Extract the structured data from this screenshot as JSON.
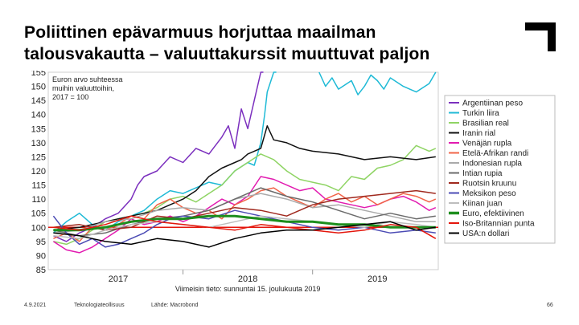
{
  "title_lines": [
    "Poliittinen epävarmuus horjuttaa maailman",
    "talousvakautta – valuuttakurssit muuttuvat paljon"
  ],
  "footer": {
    "date": "4.9.2021",
    "org": "Teknologiateollisuus",
    "source": "Lähde: Macrobond",
    "page": "66"
  },
  "chart_data": {
    "type": "line",
    "annotation": [
      "Euron arvo suhteessa",
      "muihin valuuttoihin,",
      "2017 = 100"
    ],
    "note": "Viimeisin tieto: sunnuntai 15. joulukuuta 2019",
    "ylim": [
      85,
      155
    ],
    "yticks": [
      85,
      90,
      95,
      100,
      105,
      110,
      115,
      120,
      125,
      130,
      135,
      140,
      145,
      150,
      155
    ],
    "xlim": [
      2016.96,
      2019.97
    ],
    "xticks": [
      {
        "label": "2017",
        "x": 2017.5
      },
      {
        "label": "2018",
        "x": 2018.5
      },
      {
        "label": "2019",
        "x": 2019.5
      }
    ],
    "xbounds": [
      2018.0,
      2019.0
    ],
    "reference_line": {
      "y": 100,
      "color": "#e4160c"
    },
    "legend_position": "right",
    "series": [
      {
        "name": "Argentiinan peso",
        "color": "#7b2fbe",
        "width": 1.5,
        "x": [
          2017.0,
          2017.1,
          2017.2,
          2017.3,
          2017.4,
          2017.5,
          2017.6,
          2017.65,
          2017.7,
          2017.8,
          2017.9,
          2018.0,
          2018.1,
          2018.2,
          2018.3,
          2018.35,
          2018.4,
          2018.45,
          2018.5,
          2018.55,
          2018.6,
          2018.62
        ],
        "y": [
          97,
          95,
          98,
          100,
          103,
          105,
          110,
          115,
          118,
          120,
          125,
          123,
          128,
          126,
          132,
          136,
          128,
          142,
          135,
          145,
          155,
          156
        ]
      },
      {
        "name": "Turkin liira",
        "color": "#1fbad6",
        "width": 1.5,
        "x": [
          2017.0,
          2017.1,
          2017.2,
          2017.3,
          2017.4,
          2017.5,
          2017.6,
          2017.7,
          2017.8,
          2017.9,
          2018.0,
          2018.1,
          2018.2,
          2018.3,
          2018.4,
          2018.5,
          2018.55,
          2018.6,
          2018.63,
          2018.65,
          2018.7,
          2018.72
        ],
        "y": [
          98,
          102,
          105,
          101,
          99,
          102,
          104,
          106,
          110,
          113,
          112,
          114,
          116,
          115,
          120,
          123,
          122,
          130,
          140,
          148,
          155,
          157
        ]
      },
      {
        "name": "Turkin liira",
        "color": "#1fbad6",
        "width": 1.5,
        "legend": false,
        "x": [
          2019.05,
          2019.1,
          2019.15,
          2019.2,
          2019.3,
          2019.35,
          2019.4,
          2019.45,
          2019.5,
          2019.55,
          2019.6,
          2019.7,
          2019.8,
          2019.9,
          2019.95
        ],
        "y": [
          156,
          150,
          153,
          149,
          152,
          147,
          150,
          154,
          152,
          149,
          153,
          150,
          148,
          151,
          156
        ]
      },
      {
        "name": "Brasilian real",
        "color": "#8fd464",
        "width": 1.5,
        "x": [
          2017.0,
          2017.1,
          2017.2,
          2017.3,
          2017.4,
          2017.5,
          2017.6,
          2017.7,
          2017.8,
          2017.9,
          2018.0,
          2018.1,
          2018.2,
          2018.3,
          2018.4,
          2018.5,
          2018.6,
          2018.7,
          2018.8,
          2018.9,
          2019.0,
          2019.1,
          2019.2,
          2019.3,
          2019.4,
          2019.5,
          2019.6,
          2019.7,
          2019.8,
          2019.9,
          2019.95
        ],
        "y": [
          95,
          94,
          96,
          99,
          102,
          103,
          104,
          105,
          107,
          110,
          111,
          109,
          112,
          115,
          120,
          123,
          126,
          124,
          120,
          117,
          116,
          115,
          113,
          118,
          117,
          121,
          122,
          124,
          129,
          127,
          128
        ]
      },
      {
        "name": "Iranin rial",
        "color": "#111111",
        "width": 1.5,
        "x": [
          2017.0,
          2017.2,
          2017.4,
          2017.6,
          2017.8,
          2017.9,
          2018.0,
          2018.1,
          2018.2,
          2018.3,
          2018.4,
          2018.45,
          2018.5,
          2018.55,
          2018.6,
          2018.65,
          2018.7,
          2018.8,
          2018.9,
          2019.0,
          2019.2,
          2019.4,
          2019.6,
          2019.8,
          2019.95
        ],
        "y": [
          99,
          100,
          102,
          104,
          106,
          108,
          110,
          113,
          118,
          121,
          123,
          124,
          126,
          127,
          128,
          136,
          131,
          130,
          128,
          127,
          126,
          124,
          125,
          124,
          125
        ]
      },
      {
        "name": "Venäjän rupla",
        "color": "#e21bb0",
        "width": 1.5,
        "x": [
          2017.0,
          2017.1,
          2017.2,
          2017.3,
          2017.4,
          2017.5,
          2017.6,
          2017.7,
          2017.8,
          2017.9,
          2018.0,
          2018.1,
          2018.2,
          2018.3,
          2018.4,
          2018.5,
          2018.6,
          2018.7,
          2018.8,
          2018.9,
          2019.0,
          2019.1,
          2019.2,
          2019.3,
          2019.4,
          2019.5,
          2019.6,
          2019.7,
          2019.8,
          2019.9,
          2019.95
        ],
        "y": [
          95,
          92,
          91,
          93,
          96,
          99,
          103,
          101,
          102,
          104,
          102,
          104,
          107,
          110,
          108,
          111,
          118,
          117,
          115,
          113,
          114,
          110,
          109,
          108,
          107,
          108,
          110,
          111,
          109,
          106,
          107
        ]
      },
      {
        "name": "Etelä-Afrikan randi",
        "color": "#f16448",
        "width": 1.5,
        "x": [
          2017.0,
          2017.1,
          2017.2,
          2017.3,
          2017.4,
          2017.5,
          2017.6,
          2017.7,
          2017.8,
          2017.9,
          2018.0,
          2018.1,
          2018.2,
          2018.3,
          2018.4,
          2018.5,
          2018.6,
          2018.7,
          2018.8,
          2018.9,
          2019.0,
          2019.1,
          2019.2,
          2019.3,
          2019.4,
          2019.5,
          2019.6,
          2019.7,
          2019.8,
          2019.9,
          2019.95
        ],
        "y": [
          96,
          98,
          95,
          100,
          99,
          101,
          104,
          103,
          108,
          110,
          107,
          105,
          106,
          103,
          108,
          110,
          113,
          114,
          111,
          109,
          107,
          110,
          112,
          109,
          111,
          108,
          110,
          112,
          111,
          109,
          110
        ]
      },
      {
        "name": "Indonesian rupla",
        "color": "#aaaaaa",
        "width": 1.5,
        "x": [
          2017.0,
          2017.2,
          2017.4,
          2017.6,
          2017.8,
          2018.0,
          2018.2,
          2018.4,
          2018.6,
          2018.8,
          2019.0,
          2019.2,
          2019.4,
          2019.6,
          2019.8,
          2019.95
        ],
        "y": [
          98,
          99,
          102,
          103,
          106,
          107,
          106,
          110,
          112,
          110,
          107,
          108,
          106,
          104,
          102,
          102
        ]
      },
      {
        "name": "Intian rupia",
        "color": "#6b6b6b",
        "width": 1.5,
        "x": [
          2017.0,
          2017.2,
          2017.4,
          2017.6,
          2017.8,
          2018.0,
          2018.2,
          2018.4,
          2018.6,
          2018.8,
          2019.0,
          2019.2,
          2019.4,
          2019.6,
          2019.8,
          2019.95
        ],
        "y": [
          99,
          97,
          98,
          101,
          103,
          104,
          106,
          110,
          114,
          111,
          109,
          106,
          103,
          105,
          103,
          104
        ]
      },
      {
        "name": "Ruotsin kruunu",
        "color": "#a0291e",
        "width": 1.5,
        "x": [
          2017.0,
          2017.2,
          2017.4,
          2017.6,
          2017.8,
          2018.0,
          2018.2,
          2018.4,
          2018.6,
          2018.8,
          2019.0,
          2019.2,
          2019.4,
          2019.6,
          2019.8,
          2019.95
        ],
        "y": [
          100,
          101,
          99,
          100,
          104,
          103,
          105,
          107,
          106,
          104,
          108,
          110,
          111,
          112,
          113,
          112
        ]
      },
      {
        "name": "Meksikon peso",
        "color": "#4b4bb4",
        "width": 1.5,
        "x": [
          2017.0,
          2017.1,
          2017.2,
          2017.3,
          2017.4,
          2017.5,
          2017.6,
          2017.7,
          2017.8,
          2017.9,
          2018.0,
          2018.2,
          2018.4,
          2018.6,
          2018.8,
          2019.0,
          2019.2,
          2019.4,
          2019.6,
          2019.8,
          2019.95
        ],
        "y": [
          104,
          98,
          94,
          96,
          93,
          94,
          96,
          98,
          101,
          103,
          104,
          103,
          106,
          104,
          102,
          100,
          99,
          100,
          98,
          99,
          98
        ]
      },
      {
        "name": "Kiinan juan",
        "color": "#bdbdbd",
        "width": 1.5,
        "x": [
          2017.0,
          2017.2,
          2017.4,
          2017.6,
          2017.8,
          2018.0,
          2018.2,
          2018.4,
          2018.6,
          2018.8,
          2019.0,
          2019.2,
          2019.4,
          2019.6,
          2019.8,
          2019.95
        ],
        "y": [
          97,
          96,
          99,
          101,
          102,
          101,
          100,
          102,
          104,
          103,
          102,
          101,
          100,
          102,
          101,
          100
        ]
      },
      {
        "name": "Euro, efektiivinen",
        "color": "#1d8e1d",
        "width": 3,
        "x": [
          2017.0,
          2017.2,
          2017.4,
          2017.6,
          2017.8,
          2018.0,
          2018.2,
          2018.4,
          2018.6,
          2018.8,
          2019.0,
          2019.2,
          2019.4,
          2019.6,
          2019.8,
          2019.95
        ],
        "y": [
          99,
          99,
          100,
          102,
          103,
          103,
          104,
          104,
          103,
          102,
          102,
          101,
          101,
          100,
          100,
          100
        ]
      },
      {
        "name": "Iso-Britannian punta",
        "color": "#e4160c",
        "width": 1.5,
        "x": [
          2017.0,
          2017.2,
          2017.4,
          2017.6,
          2017.8,
          2018.0,
          2018.2,
          2018.4,
          2018.6,
          2018.8,
          2019.0,
          2019.2,
          2019.4,
          2019.6,
          2019.8,
          2019.95
        ],
        "y": [
          100,
          99,
          101,
          104,
          102,
          101,
          100,
          99,
          101,
          100,
          99,
          98,
          99,
          101,
          100,
          96
        ]
      },
      {
        "name": "USA:n dollari",
        "color": "#000000",
        "width": 1.5,
        "x": [
          2017.0,
          2017.2,
          2017.4,
          2017.6,
          2017.8,
          2018.0,
          2018.2,
          2018.4,
          2018.6,
          2018.8,
          2019.0,
          2019.2,
          2019.4,
          2019.6,
          2019.8,
          2019.95
        ],
        "y": [
          98,
          97,
          95,
          94,
          96,
          95,
          93,
          96,
          98,
          99,
          99,
          100,
          101,
          102,
          99,
          100
        ]
      }
    ]
  }
}
